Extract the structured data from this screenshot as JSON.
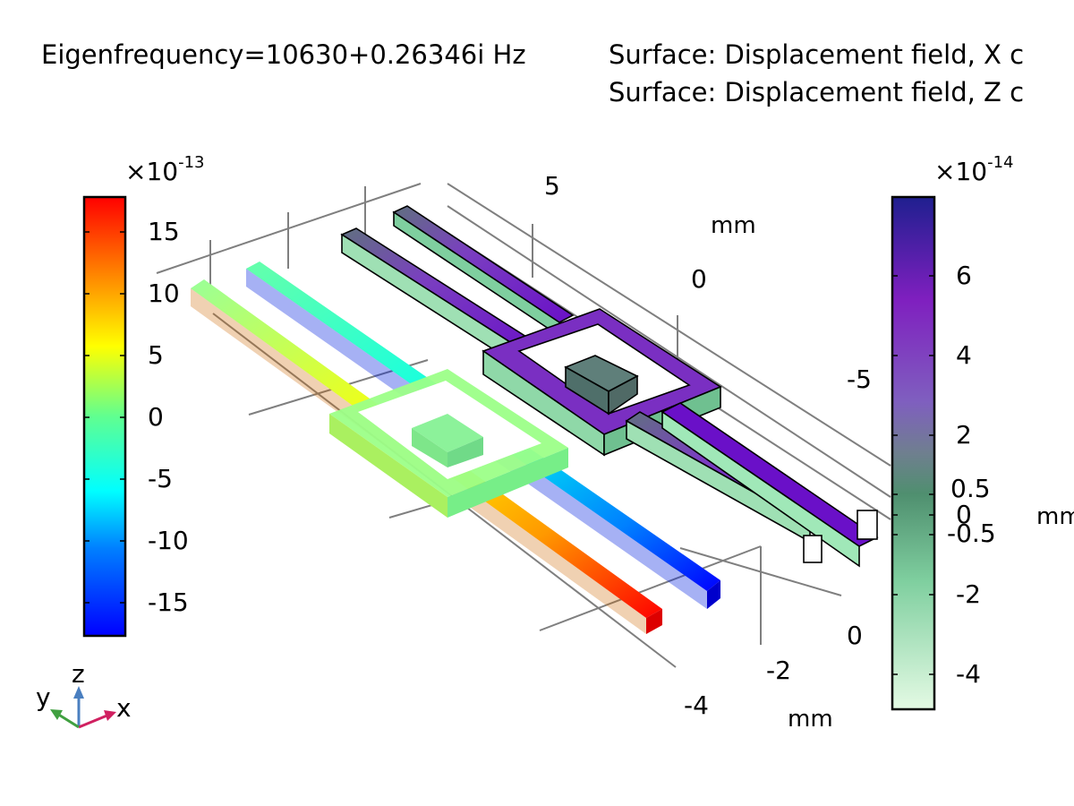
{
  "header": {
    "eigenfrequency": "Eigenfrequency=10630+0.26346i Hz",
    "surface_x": "Surface: Displacement field, X c",
    "surface_z": "Surface: Displacement field, Z c"
  },
  "colorbar_left": {
    "exponent_base": "×10",
    "exponent_power": "-13",
    "ticks": [
      "15",
      "10",
      "5",
      "0",
      "-5",
      "-10",
      "-15"
    ]
  },
  "colorbar_right": {
    "exponent_base": "×10",
    "exponent_power": "-14",
    "ticks": [
      "6",
      "4",
      "2",
      "0.5",
      "0",
      "-0.5",
      "-2",
      "-4"
    ]
  },
  "axes": {
    "y_ticks": [
      "5",
      "0",
      "-5"
    ],
    "y_unit": "mm",
    "x_ticks": [
      "0",
      "-2",
      "-4"
    ],
    "x_unit": "mm",
    "z_unit": "mm"
  },
  "triad": {
    "x": "x",
    "y": "y",
    "z": "z"
  },
  "colors": {
    "left_map": [
      "#0000ff",
      "#00ffff",
      "#ffff00",
      "#ff0000"
    ],
    "right_map": [
      "#e4fae4",
      "#4f8f6f",
      "#7f1fbf",
      "#1f1f8f"
    ]
  },
  "chart_data": {
    "type": "heatmap",
    "title": "Eigenfrequency=10630+0.26346i Hz",
    "series": [
      {
        "name": "Surface: Displacement field, X c",
        "range": [
          -17,
          17
        ],
        "scale": "×10^-13"
      },
      {
        "name": "Surface: Displacement field, Z c",
        "range": [
          -4.8,
          7.8
        ],
        "scale": "×10^-14"
      }
    ],
    "axis_ticks": {
      "x": [
        0,
        -2,
        -4
      ],
      "y": [
        5,
        0,
        -5
      ]
    }
  }
}
